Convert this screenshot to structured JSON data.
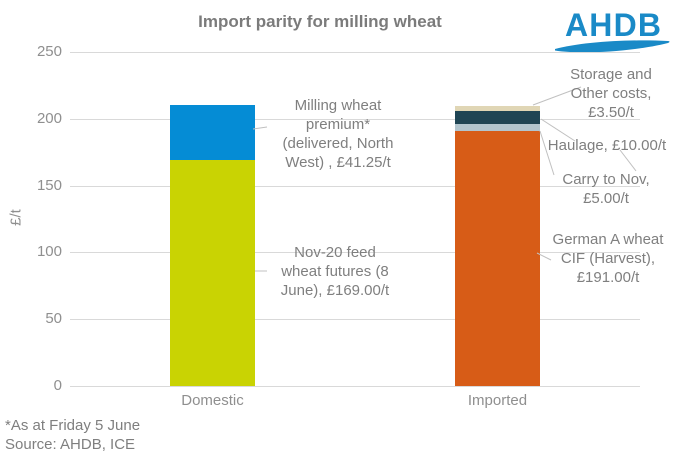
{
  "chart_data": {
    "type": "bar",
    "stacked": true,
    "title": "Import parity for milling wheat",
    "categories": [
      "Domestic",
      "Imported"
    ],
    "series": [
      {
        "name": "Nov-20 feed wheat futures (8 June)",
        "values": [
          169,
          0
        ],
        "color": "#c9d303"
      },
      {
        "name": "Milling wheat premium* (delivered, North West)",
        "values": [
          41.25,
          0
        ],
        "color": "#058cd5"
      },
      {
        "name": "German A wheat CIF (Harvest)",
        "values": [
          0,
          191
        ],
        "color": "#d75c17"
      },
      {
        "name": "Carry to Nov",
        "values": [
          0,
          5
        ],
        "color": "#b2c5ce"
      },
      {
        "name": "Haulage",
        "values": [
          0,
          10
        ],
        "color": "#1f4554"
      },
      {
        "name": "Storage and Other costs",
        "values": [
          0,
          3.5
        ],
        "color": "#e0d6b5"
      }
    ],
    "ylabel": "£/t",
    "ylim": [
      0,
      250
    ],
    "yticks": [
      250,
      200,
      150,
      100,
      50,
      0
    ],
    "grid": true,
    "legend": false
  },
  "logo": {
    "text": "AHDB",
    "color": "#1a8ac7"
  },
  "annotations": {
    "milling_premium": "Milling wheat\npremium*\n(delivered, North\nWest) , £41.25/t",
    "feed_futures": "Nov-20 feed\nwheat futures (8\nJune), £169.00/t",
    "storage": "Storage and\nOther costs,\n£3.50/t",
    "haulage": "Haulage, £10.00/t",
    "carry": "Carry to Nov,\n£5.00/t",
    "german": "German A wheat\nCIF (Harvest),\n£191.00/t"
  },
  "footnote": "*As at Friday 5 June",
  "source": "Source: AHDB, ICE"
}
